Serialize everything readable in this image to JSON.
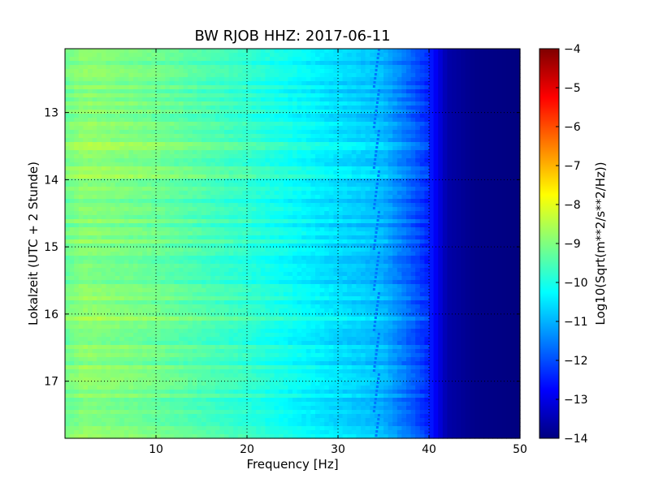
{
  "chart_data": {
    "type": "heatmap",
    "title": "BW RJOB HHZ: 2017-06-11",
    "xlabel": "Frequency [Hz]",
    "ylabel": "Lokalzeit (UTC + 2 Stunde)",
    "xlim": [
      0,
      50
    ],
    "ylim": [
      17.85,
      12.05
    ],
    "x_ticks": [
      10,
      20,
      30,
      40,
      50
    ],
    "x_tick_labels": [
      "10",
      "20",
      "30",
      "40",
      "50"
    ],
    "y_ticks": [
      13,
      14,
      15,
      16,
      17
    ],
    "y_tick_labels": [
      "13",
      "14",
      "15",
      "16",
      "17"
    ],
    "grid": true,
    "y_axis_inverted": true,
    "colorbar": {
      "label": "Log10(Sqrt(m**2/s**2/Hz))",
      "range": [
        -14,
        -4
      ],
      "ticks": [
        -4,
        -5,
        -6,
        -7,
        -8,
        -9,
        -10,
        -11,
        -12,
        -13,
        -14
      ],
      "tick_labels": [
        "−4",
        "−5",
        "−6",
        "−7",
        "−8",
        "−9",
        "−10",
        "−11",
        "−12",
        "−13",
        "−14"
      ],
      "colormap": "jet"
    },
    "spectral_profile": {
      "frequency_hz": [
        0,
        2,
        5,
        10,
        15,
        20,
        25,
        30,
        33,
        35,
        38,
        40,
        42,
        45,
        50
      ],
      "log10_amplitude": [
        -9.2,
        -8.9,
        -9.0,
        -9.2,
        -9.5,
        -9.8,
        -10.2,
        -10.6,
        -10.8,
        -11.0,
        -11.8,
        -12.4,
        -13.6,
        -13.9,
        -14.0
      ]
    },
    "spectral_line": {
      "frequency_hz": 34.5,
      "level": -11.6
    }
  }
}
